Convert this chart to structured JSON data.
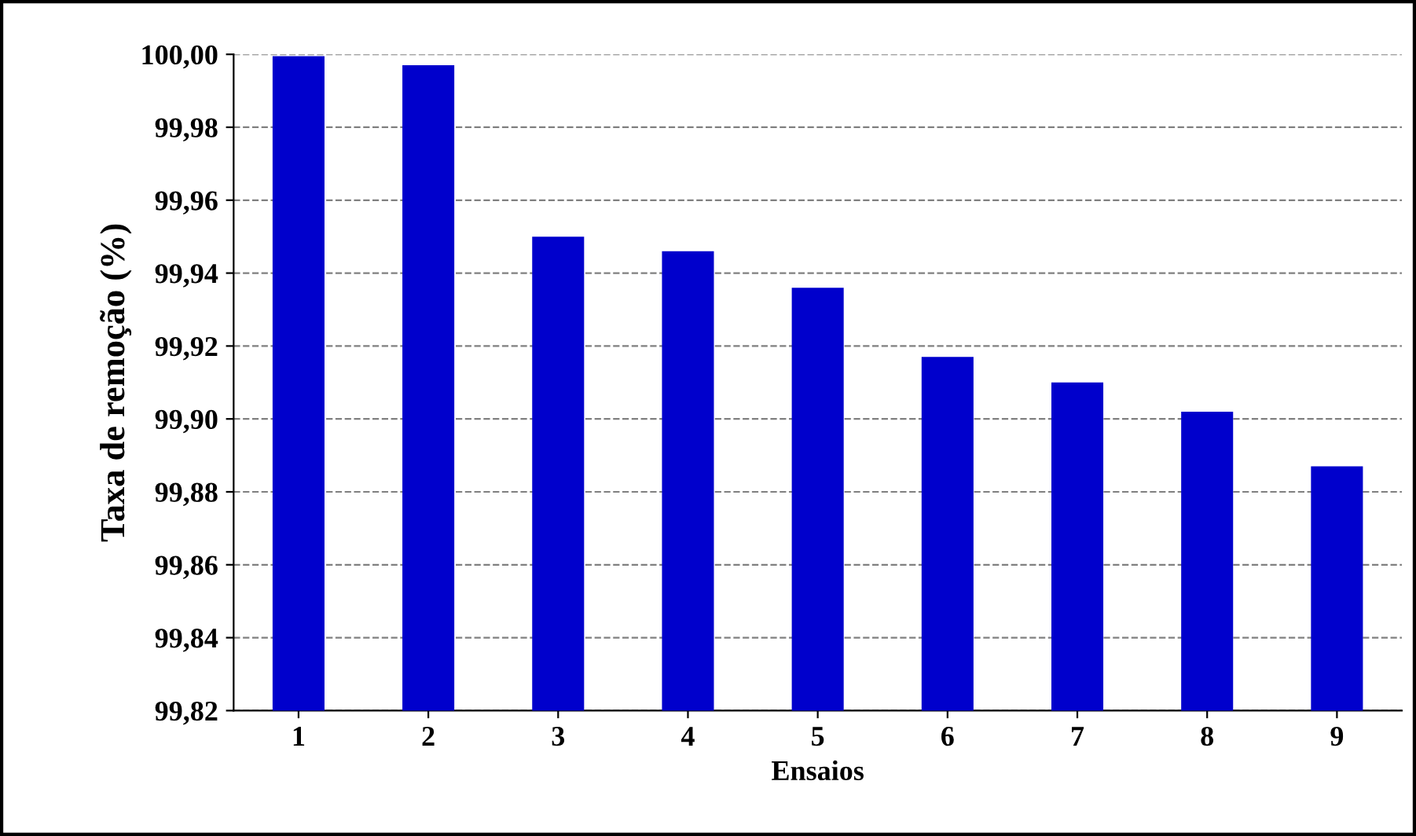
{
  "chart_data": {
    "type": "bar",
    "xlabel": "Ensaios",
    "ylabel": "Taxa de remoção (%)",
    "categories": [
      "1",
      "2",
      "3",
      "4",
      "5",
      "6",
      "7",
      "8",
      "9"
    ],
    "values": [
      99.9995,
      99.997,
      99.95,
      99.946,
      99.936,
      99.917,
      99.91,
      99.902,
      99.887
    ],
    "color": "#0000cc",
    "ylim": [
      99.82,
      100.0
    ],
    "yticks": [
      {
        "value": 99.82,
        "label": "99,82"
      },
      {
        "value": 99.84,
        "label": "99,84"
      },
      {
        "value": 99.86,
        "label": "99,86"
      },
      {
        "value": 99.88,
        "label": "99,88"
      },
      {
        "value": 99.9,
        "label": "99,90"
      },
      {
        "value": 99.92,
        "label": "99,92"
      },
      {
        "value": 99.94,
        "label": "99,94"
      },
      {
        "value": 99.96,
        "label": "99,96"
      },
      {
        "value": 99.98,
        "label": "99,98"
      },
      {
        "value": 100.0,
        "label": "100,00"
      }
    ],
    "grid": "y",
    "legend": false
  }
}
